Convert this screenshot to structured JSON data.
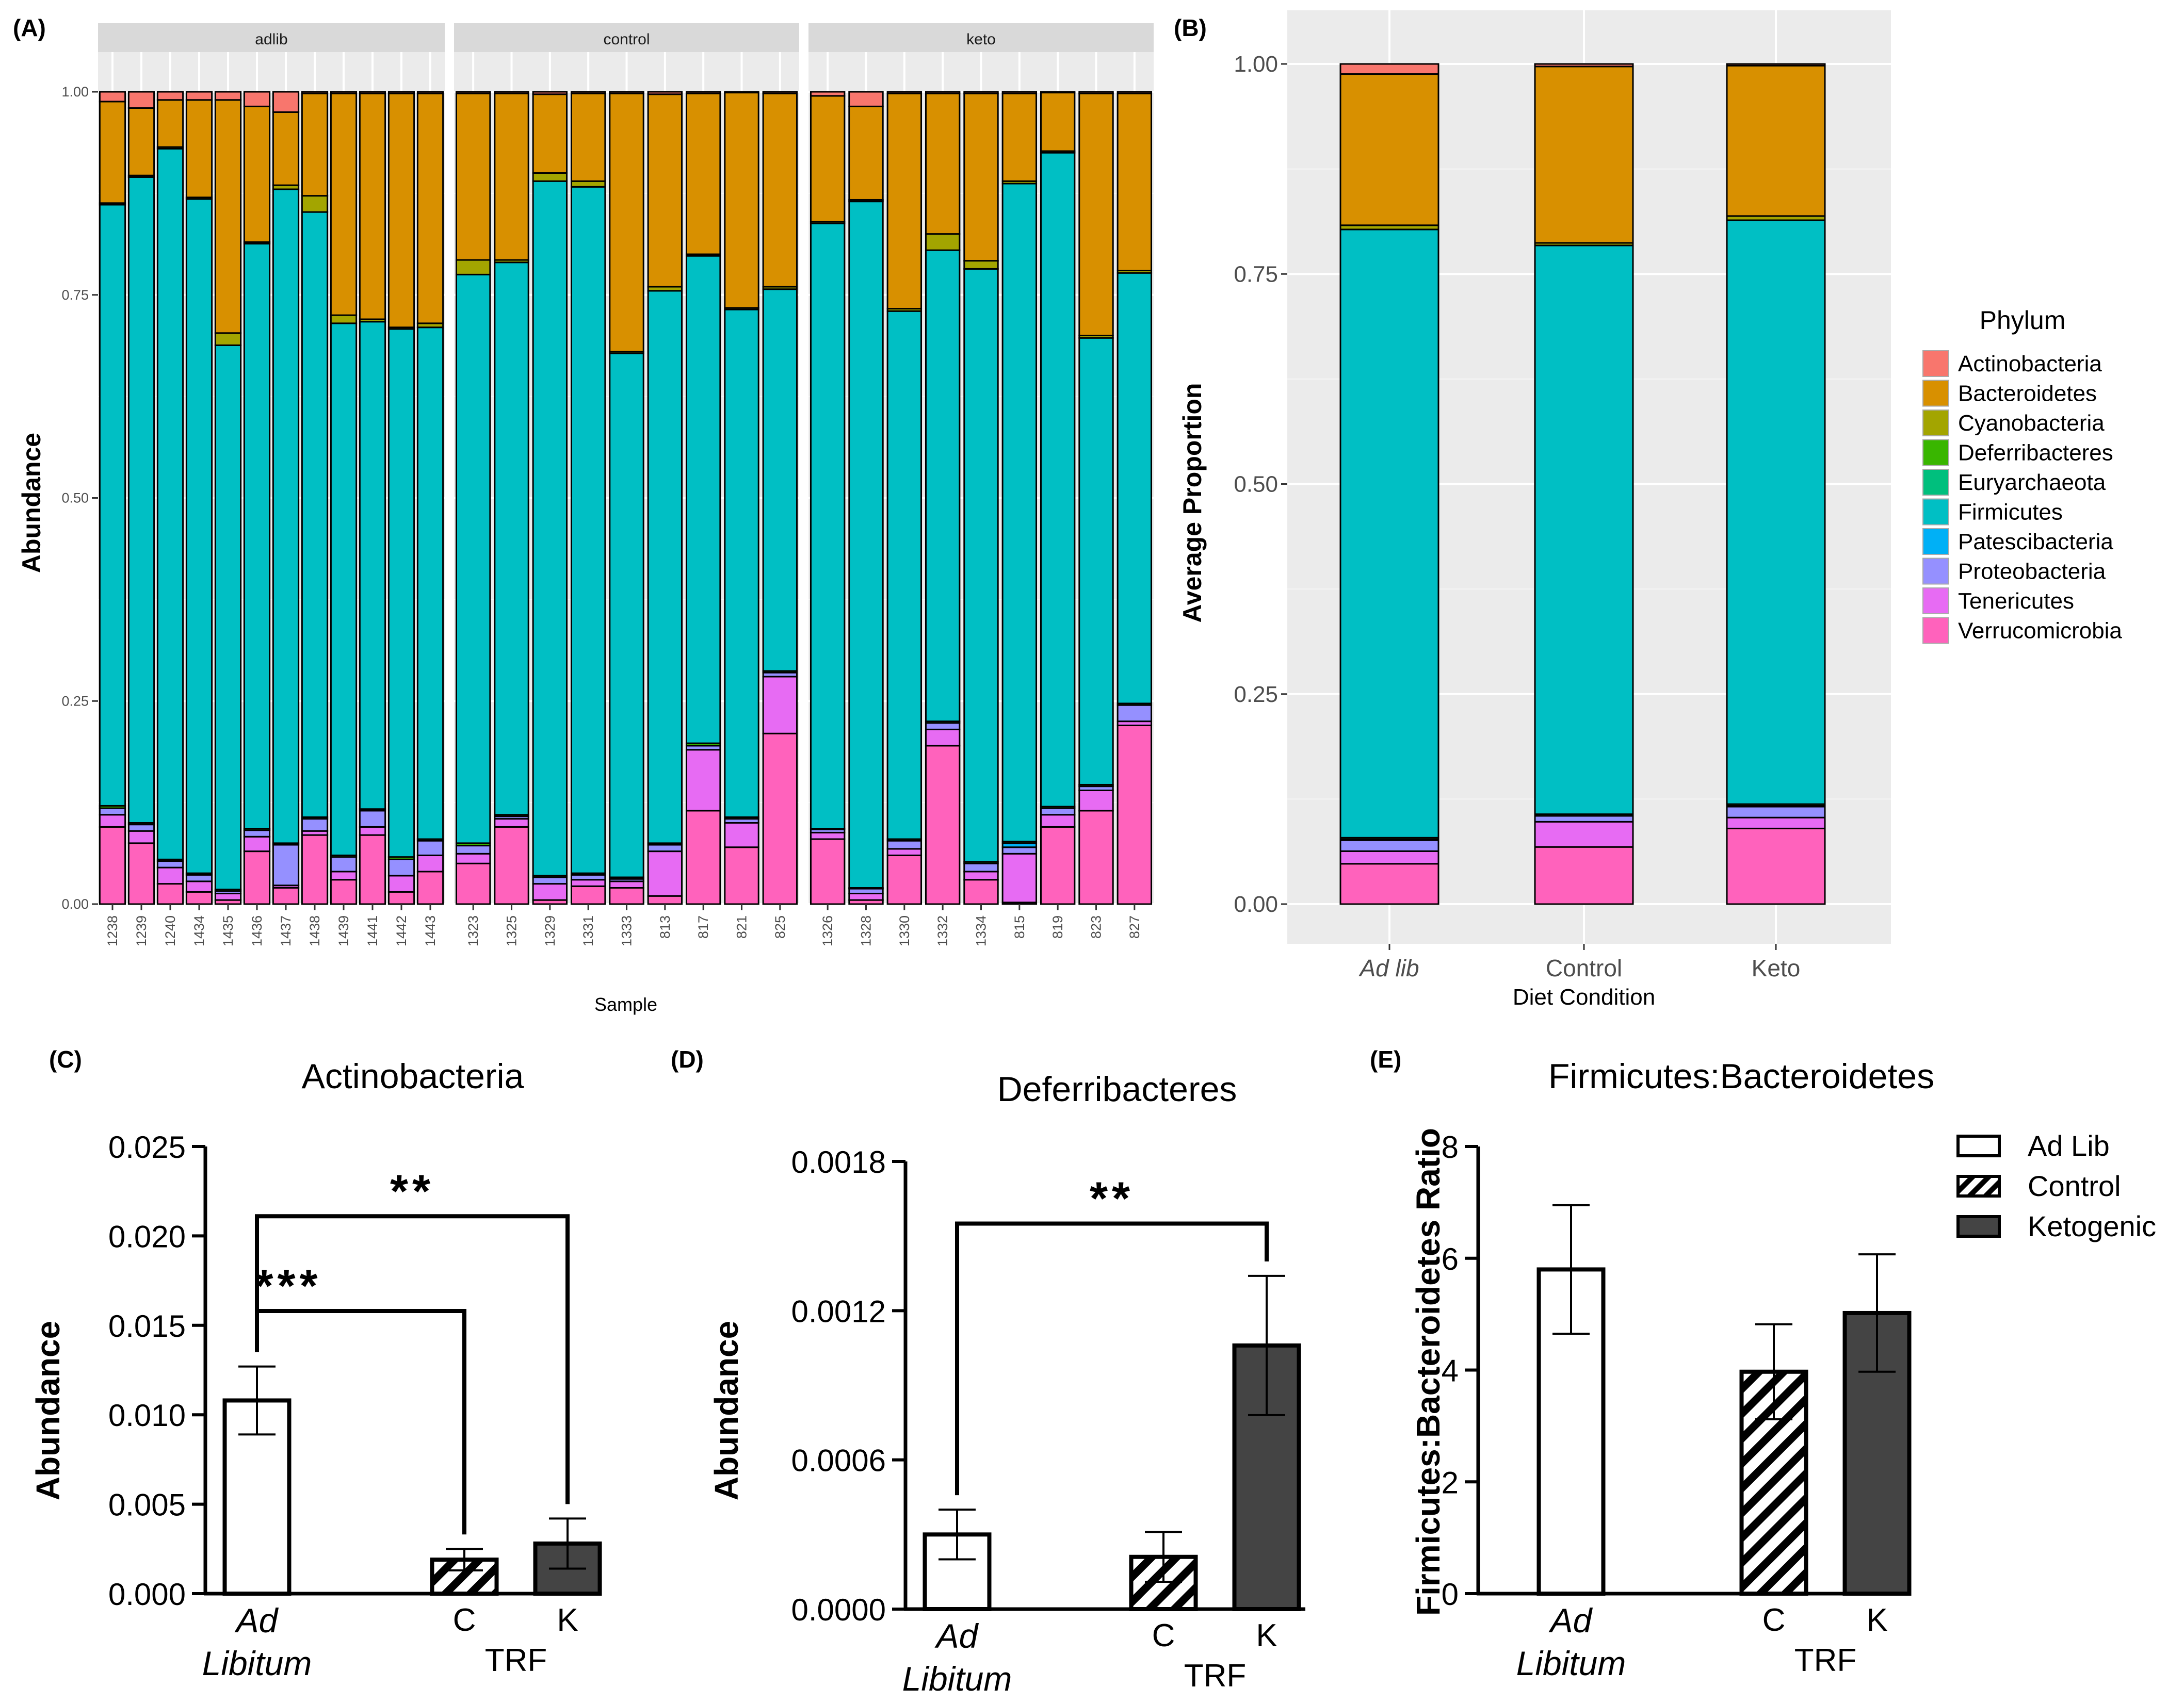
{
  "colors": {
    "Actinobacteria": "#F8766D",
    "Bacteroidetes": "#D89000",
    "Cyanobacteria": "#A3A500",
    "Deferribacteres": "#39B600",
    "Euryarchaeota": "#00BF7D",
    "Firmicutes": "#00BFC4",
    "Patescibacteria": "#00B0F6",
    "Proteobacteria": "#9590FF",
    "Tenericutes": "#E76BF3",
    "Verrucomicrobia": "#FF62BC",
    "panel_bg": "#EBEBEB",
    "strip_bg": "#D9D9D9",
    "bar_dark": "#444444"
  },
  "chart_data": [
    {
      "panel_label": "(A)",
      "type": "bar",
      "stacked": true,
      "xlabel": "Sample",
      "ylabel": "Abundance",
      "ylim": [
        0,
        1
      ],
      "yticks": [
        "0.00",
        "0.25",
        "0.50",
        "0.75",
        "1.00"
      ],
      "series_order": [
        "Verrucomicrobia",
        "Tenericutes",
        "Proteobacteria",
        "Patescibacteria",
        "Euryarchaeota",
        "Deferribacteres",
        "Firmicutes",
        "Cyanobacteria",
        "Bacteroidetes",
        "Actinobacteria"
      ],
      "facets": [
        {
          "name": "adlib",
          "samples": [
            {
              "id": "1238",
              "values": [
                0.095,
                0.015,
                0.008,
                0,
                0,
                0.003,
                0.74,
                0.002,
                0.125,
                0.012
              ]
            },
            {
              "id": "1239",
              "values": [
                0.075,
                0.015,
                0.008,
                0,
                0,
                0.002,
                0.795,
                0.002,
                0.083,
                0.02
              ]
            },
            {
              "id": "1240",
              "values": [
                0.025,
                0.02,
                0.008,
                0,
                0,
                0.002,
                0.875,
                0.002,
                0.058,
                0.01
              ]
            },
            {
              "id": "1434",
              "values": [
                0.015,
                0.013,
                0.008,
                0,
                0,
                0.002,
                0.83,
                0.002,
                0.12,
                0.01
              ]
            },
            {
              "id": "1435",
              "values": [
                0.005,
                0.008,
                0.003,
                0,
                0,
                0.002,
                0.67,
                0.015,
                0.287,
                0.01
              ]
            },
            {
              "id": "1436",
              "values": [
                0.065,
                0.018,
                0.008,
                0,
                0,
                0.002,
                0.72,
                0.002,
                0.167,
                0.018
              ]
            },
            {
              "id": "1437",
              "values": [
                0.02,
                0.003,
                0.05,
                0,
                0,
                0.002,
                0.805,
                0.005,
                0.09,
                0.025
              ]
            },
            {
              "id": "1438",
              "values": [
                0.085,
                0.005,
                0.015,
                0,
                0,
                0.002,
                0.745,
                0.02,
                0.126,
                0.002
              ]
            },
            {
              "id": "1439",
              "values": [
                0.03,
                0.01,
                0.018,
                0,
                0,
                0.002,
                0.655,
                0.01,
                0.273,
                0.002
              ]
            },
            {
              "id": "1441",
              "values": [
                0.085,
                0.01,
                0.02,
                0,
                0,
                0.002,
                0.6,
                0.003,
                0.278,
                0.002
              ]
            },
            {
              "id": "1442",
              "values": [
                0.015,
                0.02,
                0.02,
                0,
                0,
                0.003,
                0.65,
                0.002,
                0.288,
                0.002
              ]
            },
            {
              "id": "1443",
              "values": [
                0.04,
                0.02,
                0.018,
                0,
                0,
                0.002,
                0.63,
                0.005,
                0.283,
                0.002
              ]
            }
          ]
        },
        {
          "name": "control",
          "samples": [
            {
              "id": "1323",
              "values": [
                0.05,
                0.012,
                0.01,
                0,
                0,
                0.003,
                0.7,
                0.018,
                0.205,
                0.002
              ]
            },
            {
              "id": "1325",
              "values": [
                0.095,
                0.01,
                0.003,
                0,
                0,
                0.002,
                0.68,
                0.003,
                0.205,
                0.002
              ]
            },
            {
              "id": "1329",
              "values": [
                0.005,
                0.02,
                0.008,
                0,
                0,
                0.002,
                0.855,
                0.01,
                0.097,
                0.003
              ]
            },
            {
              "id": "1331",
              "values": [
                0.022,
                0.008,
                0.006,
                0,
                0,
                0.002,
                0.845,
                0.007,
                0.108,
                0.002
              ]
            },
            {
              "id": "1333",
              "values": [
                0.02,
                0.008,
                0.003,
                0,
                0,
                0.002,
                0.645,
                0.002,
                0.318,
                0.002
              ]
            },
            {
              "id": "813",
              "values": [
                0.01,
                0.055,
                0.008,
                0,
                0,
                0.002,
                0.68,
                0.005,
                0.237,
                0.003
              ]
            },
            {
              "id": "817",
              "values": [
                0.115,
                0.075,
                0.005,
                0,
                0,
                0.003,
                0.6,
                0.002,
                0.198,
                0.002
              ]
            },
            {
              "id": "821",
              "values": [
                0.07,
                0.03,
                0.005,
                0,
                0,
                0.002,
                0.625,
                0.002,
                0.265,
                0.001
              ]
            },
            {
              "id": "825",
              "values": [
                0.21,
                0.07,
                0.005,
                0,
                0,
                0.002,
                0.47,
                0.003,
                0.238,
                0.002
              ]
            }
          ]
        },
        {
          "name": "keto",
          "samples": [
            {
              "id": "1326",
              "values": [
                0.08,
                0.008,
                0.004,
                0,
                0,
                0.001,
                0.745,
                0.002,
                0.155,
                0.005
              ]
            },
            {
              "id": "1328",
              "values": [
                0.005,
                0.008,
                0.006,
                0,
                0,
                0.001,
                0.845,
                0.002,
                0.115,
                0.018
              ]
            },
            {
              "id": "1330",
              "values": [
                0.06,
                0.008,
                0.01,
                0,
                0,
                0.002,
                0.65,
                0.003,
                0.265,
                0.002
              ]
            },
            {
              "id": "1332",
              "values": [
                0.195,
                0.02,
                0.008,
                0,
                0,
                0.002,
                0.58,
                0.02,
                0.173,
                0.002
              ]
            },
            {
              "id": "1334",
              "values": [
                0.03,
                0.01,
                0.01,
                0,
                0,
                0.002,
                0.73,
                0.01,
                0.206,
                0.002
              ]
            },
            {
              "id": "815",
              "values": [
                0.002,
                0.06,
                0.008,
                0.005,
                0,
                0.002,
                0.81,
                0.003,
                0.108,
                0.002
              ]
            },
            {
              "id": "819",
              "values": [
                0.095,
                0.015,
                0.008,
                0,
                0,
                0.002,
                0.805,
                0.002,
                0.072,
                0.001
              ]
            },
            {
              "id": "823",
              "values": [
                0.115,
                0.025,
                0.005,
                0,
                0,
                0.002,
                0.55,
                0.003,
                0.298,
                0.002
              ]
            },
            {
              "id": "827",
              "values": [
                0.22,
                0.005,
                0.02,
                0,
                0,
                0.002,
                0.53,
                0.003,
                0.218,
                0.002
              ]
            }
          ]
        }
      ]
    },
    {
      "panel_label": "(B)",
      "type": "bar",
      "stacked": true,
      "xlabel": "Diet Condition",
      "ylabel": "Average Proportion",
      "ylim": [
        0,
        1
      ],
      "yticks": [
        "0.00",
        "0.25",
        "0.50",
        "0.75",
        "1.00"
      ],
      "legend_title": "Phylum",
      "legend": [
        "Actinobacteria",
        "Bacteroidetes",
        "Cyanobacteria",
        "Deferribacteres",
        "Euryarchaeota",
        "Firmicutes",
        "Patescibacteria",
        "Proteobacteria",
        "Tenericutes",
        "Verrucomicrobia"
      ],
      "series_order": [
        "Verrucomicrobia",
        "Tenericutes",
        "Proteobacteria",
        "Patescibacteria",
        "Euryarchaeota",
        "Deferribacteres",
        "Firmicutes",
        "Cyanobacteria",
        "Bacteroidetes",
        "Actinobacteria"
      ],
      "bars": [
        {
          "category": "Ad lib",
          "italic": true,
          "values": [
            0.048,
            0.015,
            0.013,
            0.001,
            0,
            0.002,
            0.724,
            0.005,
            0.18,
            0.012
          ]
        },
        {
          "category": "Control",
          "italic": false,
          "values": [
            0.068,
            0.03,
            0.007,
            0,
            0,
            0.002,
            0.677,
            0.003,
            0.21,
            0.003
          ]
        },
        {
          "category": "Keto",
          "italic": false,
          "values": [
            0.09,
            0.013,
            0.013,
            0.001,
            0,
            0.002,
            0.695,
            0.005,
            0.179,
            0.002
          ]
        }
      ]
    },
    {
      "panel_label": "(C)",
      "type": "bar",
      "title": "Actinobacteria",
      "ylabel": "Abundance",
      "ylim": [
        0,
        0.025
      ],
      "yticks": [
        "0.000",
        "0.005",
        "0.010",
        "0.015",
        "0.020",
        "0.025"
      ],
      "bars": [
        {
          "category": "Ad Libitum",
          "value": 0.0108,
          "err": 0.0019,
          "fill": "open"
        },
        {
          "category": "C",
          "value": 0.0019,
          "err": 0.0006,
          "fill": "hatch"
        },
        {
          "category": "K",
          "value": 0.0028,
          "err": 0.0014,
          "fill": "dark"
        }
      ],
      "group_label": "TRF",
      "xlabels": [
        "Ad",
        "Libitum",
        "C",
        "K"
      ],
      "significance": [
        {
          "from": "Ad Libitum",
          "to": "K",
          "label": "**",
          "y": 0.0211
        },
        {
          "from": "Ad Libitum",
          "to": "C",
          "label": "***",
          "y": 0.0158
        }
      ]
    },
    {
      "panel_label": "(D)",
      "type": "bar",
      "title": "Deferribacteres",
      "ylabel": "Abundance",
      "ylim": [
        0,
        0.0018
      ],
      "yticks": [
        "0.0000",
        "0.0006",
        "0.0012",
        "0.0018"
      ],
      "bars": [
        {
          "category": "Ad Libitum",
          "value": 0.0003,
          "err": 0.0001,
          "fill": "open"
        },
        {
          "category": "C",
          "value": 0.00021,
          "err": 0.0001,
          "fill": "hatch"
        },
        {
          "category": "K",
          "value": 0.00106,
          "err": 0.00028,
          "fill": "dark"
        }
      ],
      "group_label": "TRF",
      "xlabels": [
        "Ad",
        "Libitum",
        "C",
        "K"
      ],
      "significance": [
        {
          "from": "Ad Libitum",
          "to": "K",
          "label": "**",
          "y": 0.00155
        }
      ]
    },
    {
      "panel_label": "(E)",
      "type": "bar",
      "title": "Firmicutes:Bacteroidetes",
      "ylabel": "Firmicutes:Bacteroidetes Ratio",
      "ylim": [
        0,
        8
      ],
      "yticks": [
        "0",
        "2",
        "4",
        "6",
        "8"
      ],
      "bars": [
        {
          "category": "Ad Libitum",
          "value": 5.8,
          "err": 1.15,
          "fill": "open"
        },
        {
          "category": "C",
          "value": 3.97,
          "err": 0.85,
          "fill": "hatch"
        },
        {
          "category": "K",
          "value": 5.02,
          "err": 1.05,
          "fill": "dark"
        }
      ],
      "group_label": "TRF",
      "xlabels": [
        "Ad",
        "Libitum",
        "C",
        "K"
      ],
      "legend": [
        {
          "label": "Ad Lib",
          "fill": "open"
        },
        {
          "label": "Control",
          "fill": "hatch"
        },
        {
          "label": "Ketogenic",
          "fill": "dark"
        }
      ]
    }
  ]
}
